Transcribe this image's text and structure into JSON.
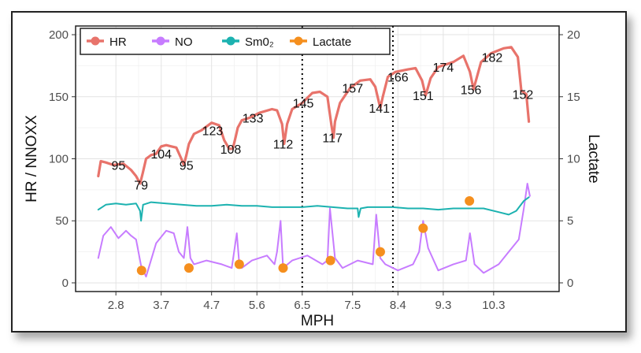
{
  "chart_data": {
    "type": "line",
    "xlabel": "MPH",
    "ylabel_left": "HR / NNOXX",
    "ylabel_right": "Lactate",
    "x_ticks": [
      "2.8",
      "3.7",
      "4.7",
      "5.6",
      "6.5",
      "7.5",
      "8.4",
      "9.3",
      "10.3"
    ],
    "x_tick_values": [
      2.8,
      3.7,
      4.7,
      5.6,
      6.5,
      7.5,
      8.4,
      9.3,
      10.3
    ],
    "xlim": [
      2.0,
      11.6
    ],
    "ylim_left": [
      -7,
      207
    ],
    "ylim_right": [
      -0.7,
      20.7
    ],
    "y_ticks_left": [
      0,
      50,
      100,
      150,
      200
    ],
    "y_ticks_right": [
      0,
      5,
      10,
      15,
      20
    ],
    "grid": true,
    "legend_position": "top-left",
    "vertical_lines": [
      6.5,
      8.3
    ],
    "series": [
      {
        "name": "HR",
        "axis": "left",
        "color": "#e8736b",
        "x": [
          2.45,
          2.5,
          2.6,
          2.75,
          2.95,
          3.1,
          3.2,
          3.28,
          3.33,
          3.4,
          3.5,
          3.6,
          3.7,
          3.8,
          3.9,
          4.0,
          4.1,
          4.15,
          4.2,
          4.25,
          4.35,
          4.5,
          4.7,
          4.85,
          4.95,
          5.05,
          5.12,
          5.18,
          5.22,
          5.3,
          5.45,
          5.65,
          5.9,
          6.0,
          6.1,
          6.14,
          6.2,
          6.3,
          6.5,
          6.7,
          6.85,
          7.0,
          7.08,
          7.12,
          7.15,
          7.25,
          7.45,
          7.65,
          7.85,
          7.95,
          8.02,
          8.05,
          8.1,
          8.2,
          8.35,
          8.6,
          8.75,
          8.88,
          8.95,
          9.05,
          9.2,
          9.5,
          9.7,
          9.83,
          9.9,
          10.05,
          10.25,
          10.5,
          10.65,
          10.78,
          10.85,
          10.95,
          11.0
        ],
        "values": [
          86,
          98,
          97,
          95,
          96,
          91,
          86,
          80,
          88,
          100,
          103,
          104,
          110,
          111,
          110,
          109,
          100,
          95,
          103,
          112,
          120,
          123,
          129,
          127,
          115,
          108,
          108,
          118,
          125,
          131,
          133,
          137,
          140,
          139,
          128,
          112,
          128,
          140,
          145,
          153,
          154,
          150,
          127,
          117,
          130,
          145,
          157,
          163,
          164,
          158,
          146,
          141,
          150,
          166,
          170,
          172,
          173,
          163,
          151,
          165,
          174,
          178,
          183,
          170,
          156,
          178,
          185,
          189,
          190,
          182,
          155,
          152,
          130
        ]
      },
      {
        "name": "NO",
        "axis": "left",
        "color": "#c77cff",
        "x": [
          2.45,
          2.55,
          2.7,
          2.85,
          3.0,
          3.1,
          3.2,
          3.3,
          3.4,
          3.6,
          3.8,
          3.95,
          4.05,
          4.15,
          4.22,
          4.28,
          4.35,
          4.6,
          4.9,
          5.1,
          5.2,
          5.25,
          5.3,
          5.5,
          5.8,
          5.95,
          6.0,
          6.07,
          6.12,
          6.3,
          6.6,
          6.9,
          7.0,
          7.05,
          7.15,
          7.3,
          7.6,
          7.9,
          7.97,
          8.05,
          8.15,
          8.4,
          8.7,
          8.82,
          8.9,
          9.0,
          9.2,
          9.5,
          9.75,
          9.83,
          9.92,
          10.1,
          10.4,
          10.6,
          10.8,
          10.9,
          10.97,
          11.02
        ],
        "values": [
          20,
          38,
          45,
          36,
          42,
          38,
          35,
          14,
          5,
          32,
          42,
          40,
          25,
          20,
          45,
          20,
          15,
          18,
          15,
          12,
          40,
          15,
          12,
          18,
          22,
          15,
          25,
          50,
          12,
          18,
          22,
          15,
          18,
          60,
          20,
          12,
          18,
          15,
          55,
          20,
          15,
          10,
          15,
          25,
          50,
          28,
          10,
          15,
          18,
          40,
          15,
          8,
          15,
          25,
          35,
          60,
          80,
          70
        ]
      },
      {
        "name": "Sm0₂",
        "axis": "left",
        "color": "#1cb2b0",
        "x": [
          2.45,
          2.6,
          2.8,
          3.0,
          3.2,
          3.28,
          3.3,
          3.34,
          3.5,
          3.8,
          4.1,
          4.4,
          4.7,
          5.0,
          5.3,
          5.6,
          5.9,
          6.2,
          6.5,
          6.8,
          7.1,
          7.4,
          7.6,
          7.62,
          7.66,
          7.8,
          8.0,
          8.3,
          8.6,
          8.9,
          9.2,
          9.5,
          9.8,
          10.1,
          10.4,
          10.6,
          10.75,
          10.9,
          11.0
        ],
        "values": [
          59,
          63,
          64,
          63,
          64,
          58,
          50,
          63,
          65,
          64,
          63,
          62,
          62,
          63,
          62,
          62,
          61,
          61,
          61,
          62,
          61,
          60,
          60,
          53,
          60,
          61,
          61,
          61,
          60,
          60,
          59,
          60,
          60,
          60,
          57,
          55,
          58,
          66,
          69
        ]
      },
      {
        "name": "Lactate",
        "axis": "right",
        "color": "#f58f1e",
        "marker": "circle",
        "x": [
          3.31,
          4.25,
          5.25,
          6.12,
          7.06,
          8.05,
          8.9,
          9.82
        ],
        "values": [
          1.0,
          1.2,
          1.5,
          1.2,
          1.8,
          2.5,
          4.4,
          6.6
        ]
      }
    ],
    "point_labels": [
      {
        "x": 2.85,
        "y": 95,
        "text": "95"
      },
      {
        "x": 3.3,
        "y": 79,
        "text": "79"
      },
      {
        "x": 3.7,
        "y": 104,
        "text": "104"
      },
      {
        "x": 4.2,
        "y": 95,
        "text": "95"
      },
      {
        "x": 4.72,
        "y": 123,
        "text": "123"
      },
      {
        "x": 5.08,
        "y": 108,
        "text": "108"
      },
      {
        "x": 5.52,
        "y": 133,
        "text": "133"
      },
      {
        "x": 6.12,
        "y": 112,
        "text": "112"
      },
      {
        "x": 6.52,
        "y": 145,
        "text": "145"
      },
      {
        "x": 7.1,
        "y": 117,
        "text": "117"
      },
      {
        "x": 7.5,
        "y": 157,
        "text": "157"
      },
      {
        "x": 8.03,
        "y": 141,
        "text": "141"
      },
      {
        "x": 8.4,
        "y": 166,
        "text": "166"
      },
      {
        "x": 8.9,
        "y": 151,
        "text": "151"
      },
      {
        "x": 9.3,
        "y": 174,
        "text": "174"
      },
      {
        "x": 9.85,
        "y": 156,
        "text": "156"
      },
      {
        "x": 10.27,
        "y": 182,
        "text": "182"
      },
      {
        "x": 10.88,
        "y": 152,
        "text": "152"
      }
    ]
  }
}
